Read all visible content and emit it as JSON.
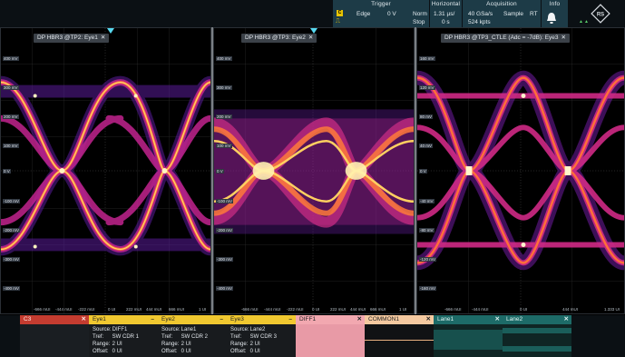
{
  "topbar": {
    "trigger": {
      "header": "Trigger",
      "type": "Edge",
      "level": "0 V",
      "mode": "Norm",
      "state": "Stop"
    },
    "horizontal": {
      "header": "Horizontal",
      "scale": "1.31 µs/",
      "position": "0 s"
    },
    "acquisition": {
      "header": "Acquisition",
      "rate": "40 GSa/s",
      "mode": "Sample",
      "rt": "RT",
      "points": "524 kpts"
    },
    "info": {
      "header": "Info"
    }
  },
  "diagrams": [
    {
      "title": "DP HBR3 @TP2: Eye1",
      "close": "✕",
      "ylabels": [
        "400 mV",
        "300 mV",
        "200 mV",
        "100 mV",
        "0 V",
        "-100 mV",
        "-200 mV",
        "-300 mV",
        "-400 mV"
      ],
      "xlabels": [
        "-666 mUI",
        "-444 mUI",
        "-222 mUI",
        "0 UI",
        "222 mUI",
        "444 mUI",
        "666 mUI",
        "1 UI"
      ]
    },
    {
      "title": "DP HBR3 @TP3: Eye2",
      "close": "✕",
      "ylabels": [
        "400 mV",
        "300 mV",
        "200 mV",
        "100 mV",
        "0 V",
        "-100 mV",
        "-200 mV",
        "-300 mV",
        "-400 mV"
      ],
      "xlabels": [
        "-666 mUI",
        "-444 mUI",
        "-222 mUI",
        "0 UI",
        "222 mUI",
        "444 mUI",
        "666 mUI",
        "1 UI"
      ]
    },
    {
      "title": "DP HBR3 @TP3_CTLE (Adc = -7dB): Eye3",
      "close": "✕",
      "ylabels": [
        "160 mV",
        "120 mV",
        "80 mV",
        "40 mV",
        "0 V",
        "-40 mV",
        "-80 mV",
        "-120 mV",
        "-160 mV"
      ],
      "xlabels": [
        "-666 mUI",
        "-444 mUI",
        "0 UI",
        "444 mUI",
        "1.333 UI"
      ]
    }
  ],
  "channels": [
    {
      "label": "C3",
      "close": "✕",
      "color": "#c43c30",
      "header_text": "#fbe9e6"
    },
    {
      "label": "Eye1",
      "close": "–",
      "color": "#f0c830",
      "header_text": "#222",
      "source": "DIFF1",
      "tref": "SW CDR 1",
      "range": "2 UI",
      "offset": "0 UI"
    },
    {
      "label": "Eye2",
      "close": "–",
      "color": "#f0c830",
      "header_text": "#222",
      "source": "Lane1",
      "tref": "SW CDR 2",
      "range": "2 UI",
      "offset": "0 UI"
    },
    {
      "label": "Eye3",
      "close": "–",
      "color": "#f0c830",
      "header_text": "#222",
      "source": "Lane2",
      "tref": "SW CDR 3",
      "range": "2 UI",
      "offset": "0 UI"
    },
    {
      "label": "DIFF1",
      "close": "✕",
      "color": "#f2a8b0",
      "header_text": "#222"
    },
    {
      "label": "COMMON1",
      "close": "✕",
      "color": "#f4c9a0",
      "header_text": "#222"
    },
    {
      "label": "Lane1",
      "close": "✕",
      "color": "#1d6b68",
      "header_text": "#e0f4f2"
    },
    {
      "label": "Lane2",
      "close": "✕",
      "color": "#1d6b68",
      "header_text": "#e0f4f2"
    }
  ],
  "info_keys": {
    "source": "Source:",
    "tref": "Tref:",
    "range": "Range:",
    "offset": "Offset:"
  }
}
